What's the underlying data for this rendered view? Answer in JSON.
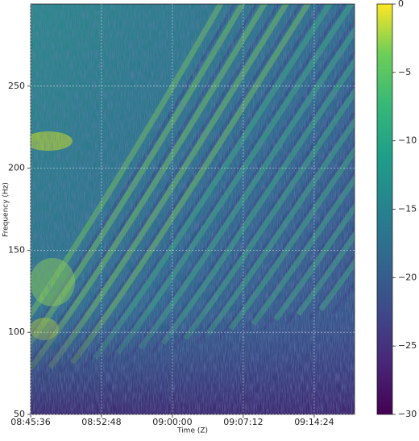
{
  "chart_data": {
    "type": "heatmap",
    "x_label": "Time (Z)",
    "y_label": "Frequency (Hz)",
    "xlim": [
      31536,
      33510
    ],
    "xticks": [
      {
        "value": 31536,
        "label": "08:45:36"
      },
      {
        "value": 31968,
        "label": "08:52:48"
      },
      {
        "value": 32400,
        "label": "09:00:00"
      },
      {
        "value": 32832,
        "label": "09:07:12"
      },
      {
        "value": 33264,
        "label": "09:14:24"
      }
    ],
    "ylim": [
      50,
      300
    ],
    "yticks": [
      50,
      100,
      150,
      200,
      250
    ],
    "colorbar_lim": [
      -30,
      0
    ],
    "colorbar_ticks": [
      0,
      {
        "value": -5,
        "label": "−5"
      },
      {
        "value": -10,
        "label": "−10"
      },
      {
        "value": -15,
        "label": "−15"
      },
      {
        "value": -20,
        "label": "−20"
      },
      {
        "value": -25,
        "label": "−25"
      },
      {
        "value": -30,
        "label": "−30"
      }
    ],
    "grid": true
  }
}
